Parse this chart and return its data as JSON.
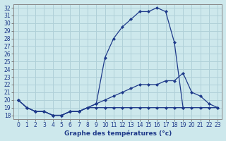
{
  "title": "Graphe des températures (°c)",
  "x_hours": [
    0,
    1,
    2,
    3,
    4,
    5,
    6,
    7,
    8,
    9,
    10,
    11,
    12,
    13,
    14,
    15,
    16,
    17,
    18,
    19,
    20,
    21,
    22,
    23
  ],
  "line1": [
    20.0,
    19.0,
    18.5,
    18.5,
    18.0,
    18.0,
    18.5,
    18.5,
    19.0,
    19.0,
    19.0,
    19.0,
    19.0,
    19.0,
    19.0,
    19.0,
    19.0,
    19.0,
    19.0,
    19.0,
    19.0,
    19.0,
    19.0,
    19.0
  ],
  "line2": [
    20.0,
    19.0,
    18.5,
    18.5,
    18.0,
    18.0,
    18.5,
    18.5,
    19.0,
    19.5,
    20.0,
    20.5,
    21.0,
    21.5,
    22.0,
    22.0,
    22.0,
    22.5,
    22.5,
    23.5,
    21.0,
    20.5,
    19.5,
    19.0
  ],
  "line3": [
    20.0,
    19.0,
    18.5,
    18.5,
    18.0,
    18.0,
    18.5,
    18.5,
    19.0,
    19.5,
    25.5,
    28.0,
    29.5,
    30.5,
    31.5,
    31.5,
    32.0,
    31.5,
    27.5,
    19.0,
    null,
    null,
    null,
    null
  ],
  "bg_color": "#cde8ec",
  "line_color": "#1e3a8a",
  "grid_color": "#b0d0d8",
  "ylim": [
    17.5,
    32.5
  ],
  "yticks": [
    18,
    19,
    20,
    21,
    22,
    23,
    24,
    25,
    26,
    27,
    28,
    29,
    30,
    31,
    32
  ],
  "xlim": [
    -0.5,
    23.5
  ],
  "marker": "D",
  "markersize": 2.0,
  "linewidth": 0.9
}
